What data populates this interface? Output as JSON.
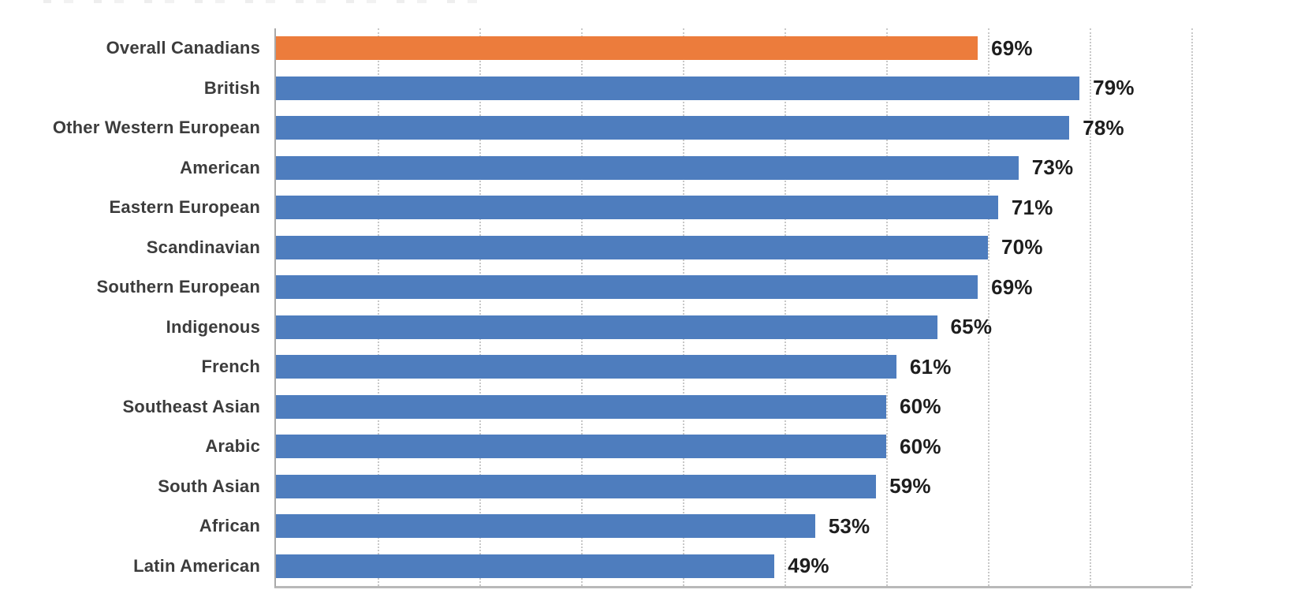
{
  "chart_data": {
    "type": "bar",
    "orientation": "horizontal",
    "categories": [
      "Overall Canadians",
      "British",
      "Other Western European",
      "American",
      "Eastern European",
      "Scandinavian",
      "Southern European",
      "Indigenous",
      "French",
      "Southeast Asian",
      "Arabic",
      "South Asian",
      "African",
      "Latin American"
    ],
    "values": [
      69,
      79,
      78,
      73,
      71,
      70,
      69,
      65,
      61,
      60,
      60,
      59,
      53,
      49
    ],
    "value_labels": [
      "69%",
      "79%",
      "78%",
      "73%",
      "71%",
      "70%",
      "69%",
      "65%",
      "61%",
      "60%",
      "60%",
      "59%",
      "53%",
      "49%"
    ],
    "highlight_index": 0,
    "highlight_color": "#EC7C3C",
    "bar_color": "#4E7DBE",
    "xlim": [
      0,
      90
    ],
    "gridline_step": 10,
    "grid": "dotted-vertical",
    "legend": "none",
    "axis_color": "#a9a9a9",
    "gridline_color": "#c8c8c8",
    "category_label_color": "#3c3c3c",
    "value_label_color": "#1e1e1e"
  }
}
